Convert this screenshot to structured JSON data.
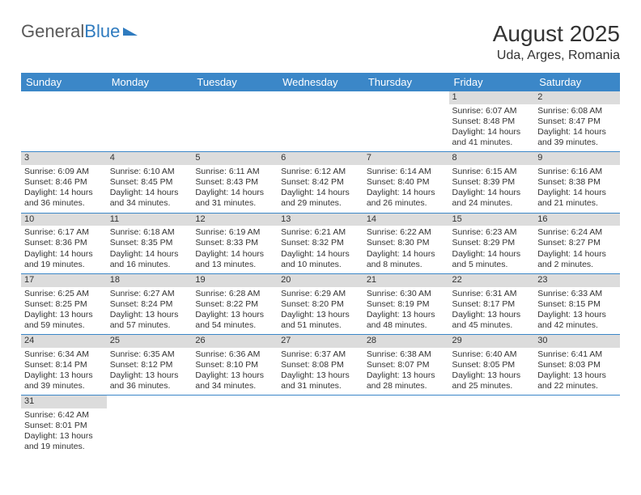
{
  "logo": {
    "part1": "General",
    "part2": "Blue"
  },
  "header": {
    "month": "August 2025",
    "location": "Uda, Arges, Romania"
  },
  "calendar": {
    "day_headers": [
      "Sunday",
      "Monday",
      "Tuesday",
      "Wednesday",
      "Thursday",
      "Friday",
      "Saturday"
    ],
    "header_bg": "#3b87c8",
    "header_fg": "#ffffff",
    "daynum_bg": "#dcdcdc",
    "cell_border": "#3b87c8",
    "start_day_index": 5,
    "days": [
      {
        "n": "1",
        "sunrise": "6:07 AM",
        "sunset": "8:48 PM",
        "daylight": "14 hours and 41 minutes."
      },
      {
        "n": "2",
        "sunrise": "6:08 AM",
        "sunset": "8:47 PM",
        "daylight": "14 hours and 39 minutes."
      },
      {
        "n": "3",
        "sunrise": "6:09 AM",
        "sunset": "8:46 PM",
        "daylight": "14 hours and 36 minutes."
      },
      {
        "n": "4",
        "sunrise": "6:10 AM",
        "sunset": "8:45 PM",
        "daylight": "14 hours and 34 minutes."
      },
      {
        "n": "5",
        "sunrise": "6:11 AM",
        "sunset": "8:43 PM",
        "daylight": "14 hours and 31 minutes."
      },
      {
        "n": "6",
        "sunrise": "6:12 AM",
        "sunset": "8:42 PM",
        "daylight": "14 hours and 29 minutes."
      },
      {
        "n": "7",
        "sunrise": "6:14 AM",
        "sunset": "8:40 PM",
        "daylight": "14 hours and 26 minutes."
      },
      {
        "n": "8",
        "sunrise": "6:15 AM",
        "sunset": "8:39 PM",
        "daylight": "14 hours and 24 minutes."
      },
      {
        "n": "9",
        "sunrise": "6:16 AM",
        "sunset": "8:38 PM",
        "daylight": "14 hours and 21 minutes."
      },
      {
        "n": "10",
        "sunrise": "6:17 AM",
        "sunset": "8:36 PM",
        "daylight": "14 hours and 19 minutes."
      },
      {
        "n": "11",
        "sunrise": "6:18 AM",
        "sunset": "8:35 PM",
        "daylight": "14 hours and 16 minutes."
      },
      {
        "n": "12",
        "sunrise": "6:19 AM",
        "sunset": "8:33 PM",
        "daylight": "14 hours and 13 minutes."
      },
      {
        "n": "13",
        "sunrise": "6:21 AM",
        "sunset": "8:32 PM",
        "daylight": "14 hours and 10 minutes."
      },
      {
        "n": "14",
        "sunrise": "6:22 AM",
        "sunset": "8:30 PM",
        "daylight": "14 hours and 8 minutes."
      },
      {
        "n": "15",
        "sunrise": "6:23 AM",
        "sunset": "8:29 PM",
        "daylight": "14 hours and 5 minutes."
      },
      {
        "n": "16",
        "sunrise": "6:24 AM",
        "sunset": "8:27 PM",
        "daylight": "14 hours and 2 minutes."
      },
      {
        "n": "17",
        "sunrise": "6:25 AM",
        "sunset": "8:25 PM",
        "daylight": "13 hours and 59 minutes."
      },
      {
        "n": "18",
        "sunrise": "6:27 AM",
        "sunset": "8:24 PM",
        "daylight": "13 hours and 57 minutes."
      },
      {
        "n": "19",
        "sunrise": "6:28 AM",
        "sunset": "8:22 PM",
        "daylight": "13 hours and 54 minutes."
      },
      {
        "n": "20",
        "sunrise": "6:29 AM",
        "sunset": "8:20 PM",
        "daylight": "13 hours and 51 minutes."
      },
      {
        "n": "21",
        "sunrise": "6:30 AM",
        "sunset": "8:19 PM",
        "daylight": "13 hours and 48 minutes."
      },
      {
        "n": "22",
        "sunrise": "6:31 AM",
        "sunset": "8:17 PM",
        "daylight": "13 hours and 45 minutes."
      },
      {
        "n": "23",
        "sunrise": "6:33 AM",
        "sunset": "8:15 PM",
        "daylight": "13 hours and 42 minutes."
      },
      {
        "n": "24",
        "sunrise": "6:34 AM",
        "sunset": "8:14 PM",
        "daylight": "13 hours and 39 minutes."
      },
      {
        "n": "25",
        "sunrise": "6:35 AM",
        "sunset": "8:12 PM",
        "daylight": "13 hours and 36 minutes."
      },
      {
        "n": "26",
        "sunrise": "6:36 AM",
        "sunset": "8:10 PM",
        "daylight": "13 hours and 34 minutes."
      },
      {
        "n": "27",
        "sunrise": "6:37 AM",
        "sunset": "8:08 PM",
        "daylight": "13 hours and 31 minutes."
      },
      {
        "n": "28",
        "sunrise": "6:38 AM",
        "sunset": "8:07 PM",
        "daylight": "13 hours and 28 minutes."
      },
      {
        "n": "29",
        "sunrise": "6:40 AM",
        "sunset": "8:05 PM",
        "daylight": "13 hours and 25 minutes."
      },
      {
        "n": "30",
        "sunrise": "6:41 AM",
        "sunset": "8:03 PM",
        "daylight": "13 hours and 22 minutes."
      },
      {
        "n": "31",
        "sunrise": "6:42 AM",
        "sunset": "8:01 PM",
        "daylight": "13 hours and 19 minutes."
      }
    ],
    "labels": {
      "sunrise": "Sunrise:",
      "sunset": "Sunset:",
      "daylight": "Daylight:"
    }
  }
}
